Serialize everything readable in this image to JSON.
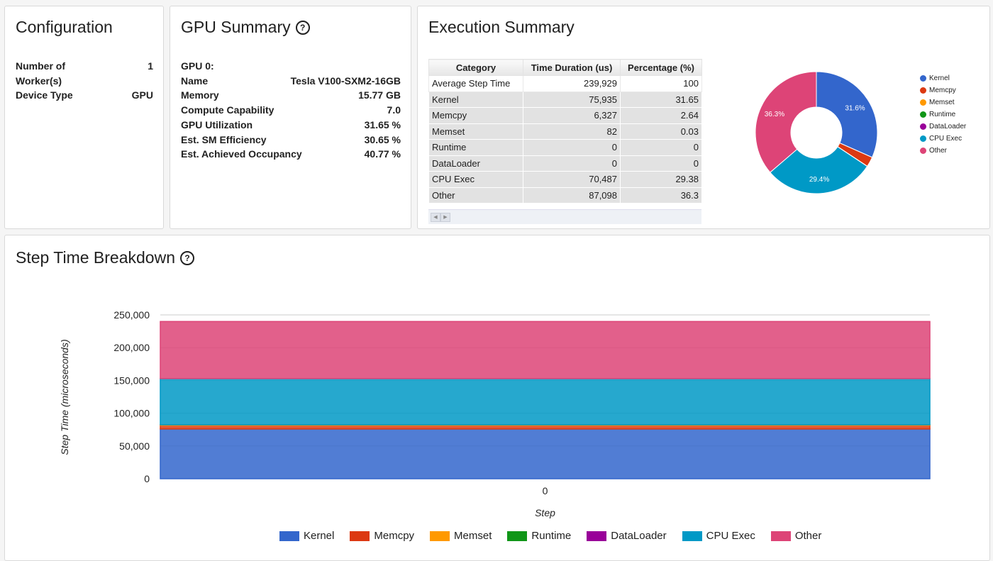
{
  "configuration": {
    "title": "Configuration",
    "rows": [
      {
        "label": "Number of Worker(s)",
        "value": "1"
      },
      {
        "label": "Device Type",
        "value": "GPU"
      }
    ]
  },
  "gpu_summary": {
    "title": "GPU Summary",
    "gpu_header": "GPU 0:",
    "rows": [
      {
        "label": "Name",
        "value": "Tesla V100-SXM2-16GB"
      },
      {
        "label": "Memory",
        "value": "15.77 GB"
      },
      {
        "label": "Compute Capability",
        "value": "7.0"
      },
      {
        "label": "GPU Utilization",
        "value": "31.65 %"
      },
      {
        "label": "Est. SM Efficiency",
        "value": "30.65 %"
      },
      {
        "label": "Est. Achieved Occupancy",
        "value": "40.77 %"
      }
    ]
  },
  "execution_summary": {
    "title": "Execution Summary",
    "columns": [
      "Category",
      "Time Duration (us)",
      "Percentage (%)"
    ],
    "rows": [
      [
        "Average Step Time",
        "239,929",
        "100"
      ],
      [
        "Kernel",
        "75,935",
        "31.65"
      ],
      [
        "Memcpy",
        "6,327",
        "2.64"
      ],
      [
        "Memset",
        "82",
        "0.03"
      ],
      [
        "Runtime",
        "0",
        "0"
      ],
      [
        "DataLoader",
        "0",
        "0"
      ],
      [
        "CPU Exec",
        "70,487",
        "29.38"
      ],
      [
        "Other",
        "87,098",
        "36.3"
      ]
    ]
  },
  "step_breakdown": {
    "title": "Step Time Breakdown"
  },
  "colors": {
    "Kernel": "#3366cc",
    "Memcpy": "#dc3912",
    "Memset": "#ff9900",
    "Runtime": "#109618",
    "DataLoader": "#990099",
    "CPU Exec": "#0099c6",
    "Other": "#dd4477"
  },
  "chart_data": [
    {
      "type": "pie",
      "categories": [
        "Kernel",
        "Memcpy",
        "Memset",
        "Runtime",
        "DataLoader",
        "CPU Exec",
        "Other"
      ],
      "values": [
        75935,
        6327,
        82,
        0,
        0,
        70487,
        87098
      ],
      "slice_labels": [
        "31.6%",
        "",
        "",
        "",
        "",
        "29.4%",
        "36.3%"
      ],
      "legend": "right"
    },
    {
      "type": "area",
      "stacked": true,
      "x": [
        0
      ],
      "xlabel": "Step",
      "ylabel": "Step Time (microseconds)",
      "ylim": [
        0,
        250000
      ],
      "yticks": [
        "0",
        "50,000",
        "100,000",
        "150,000",
        "200,000",
        "250,000"
      ],
      "xticks": [
        "0"
      ],
      "series": [
        {
          "name": "Kernel",
          "values": [
            75935
          ]
        },
        {
          "name": "Memcpy",
          "values": [
            6327
          ]
        },
        {
          "name": "Memset",
          "values": [
            82
          ]
        },
        {
          "name": "Runtime",
          "values": [
            0
          ]
        },
        {
          "name": "DataLoader",
          "values": [
            0
          ]
        },
        {
          "name": "CPU Exec",
          "values": [
            70487
          ]
        },
        {
          "name": "Other",
          "values": [
            87098
          ]
        }
      ],
      "legend": "bottom"
    }
  ]
}
